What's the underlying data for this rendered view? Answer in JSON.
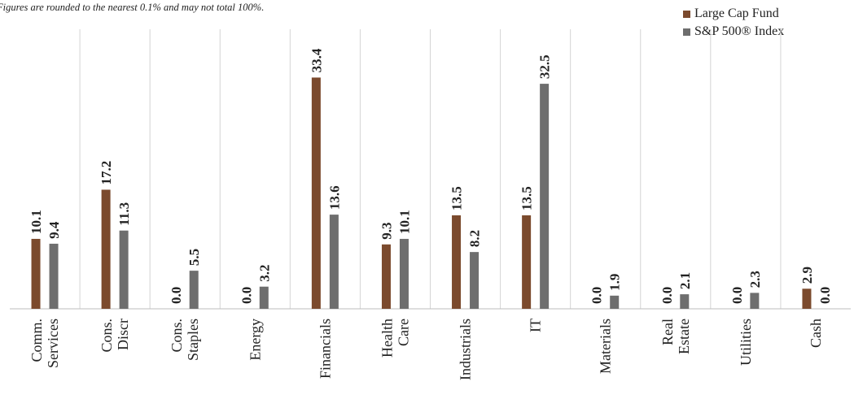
{
  "note": "Figures are rounded to the nearest 0.1% and may not total 100%.",
  "colors": {
    "fund": "#7b4a2d",
    "index": "#6e6e6e",
    "grid": "#d4d4d4",
    "axis": "#bdbdbd"
  },
  "chart_data": {
    "type": "bar",
    "title": "",
    "xlabel": "",
    "ylabel": "",
    "grid": "vertical category separators",
    "legend_position": "top-right",
    "categories": [
      [
        "Comm.",
        "Services"
      ],
      [
        "Cons.",
        "Discr"
      ],
      [
        "Cons.",
        "Staples"
      ],
      [
        "Energy"
      ],
      [
        "Financials"
      ],
      [
        "Health",
        "Care"
      ],
      [
        "Industrials"
      ],
      [
        "IT"
      ],
      [
        "Materials"
      ],
      [
        "Real",
        "Estate"
      ],
      [
        "Utilities"
      ],
      [
        "Cash"
      ]
    ],
    "series": [
      {
        "name": "Large Cap Fund",
        "values": [
          10.1,
          17.2,
          0.0,
          0.0,
          33.4,
          9.3,
          13.5,
          13.5,
          0.0,
          0.0,
          0.0,
          2.9
        ],
        "labels": [
          "10.1",
          "17.2",
          "0.0",
          "0.0",
          "33.4",
          "9.3",
          "13.5",
          "13.5",
          "0.0",
          "0.0",
          "0.0",
          "2.9"
        ]
      },
      {
        "name": "S&P 500® Index",
        "values": [
          9.4,
          11.3,
          5.5,
          3.2,
          13.6,
          10.1,
          8.2,
          32.5,
          1.9,
          2.1,
          2.3,
          0.0
        ],
        "labels": [
          "9.4",
          "11.3",
          "5.5",
          "3.2",
          "13.6",
          "10.1",
          "8.2",
          "32.5",
          "1.9",
          "2.1",
          "2.3",
          "0.0"
        ]
      }
    ],
    "ylim": [
      0,
      35
    ]
  }
}
